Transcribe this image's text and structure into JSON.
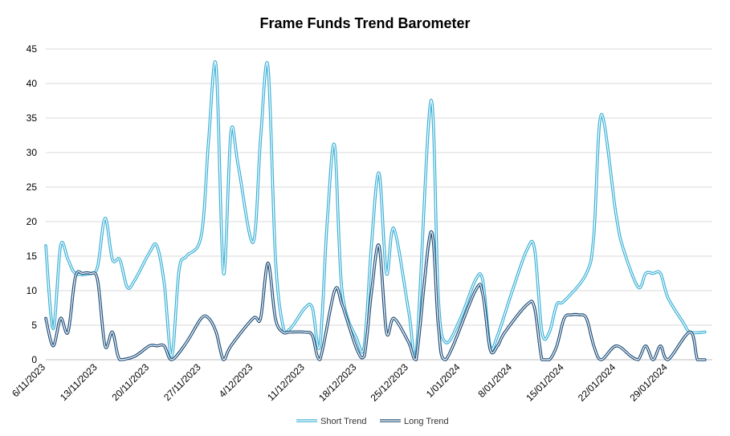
{
  "chart_data": {
    "type": "line",
    "title": "Frame Funds Trend Barometer",
    "xlabel": "",
    "ylabel": "",
    "ylim": [
      0,
      45
    ],
    "y_ticks": [
      0,
      5,
      10,
      15,
      20,
      25,
      30,
      35,
      40,
      45
    ],
    "grid": true,
    "legend_position": "bottom",
    "x_range": [
      "2023-11-06",
      "2024-02-04"
    ],
    "x_tick_labels": [
      "6/11/2023",
      "13/11/2023",
      "20/11/2023",
      "27/11/2023",
      "4/12/2023",
      "11/12/2023",
      "18/12/2023",
      "25/12/2023",
      "1/01/2024",
      "8/01/2024",
      "15/01/2024",
      "22/01/2024",
      "29/01/2024"
    ],
    "series": [
      {
        "name": "Short Trend",
        "color": "#3bb0d6",
        "points": [
          [
            "2023-11-06",
            16.5
          ],
          [
            "2023-11-07",
            4.5
          ],
          [
            "2023-11-08",
            16.5
          ],
          [
            "2023-11-09",
            14.5
          ],
          [
            "2023-11-10",
            12.5
          ],
          [
            "2023-11-12",
            12.5
          ],
          [
            "2023-11-13",
            13.5
          ],
          [
            "2023-11-14",
            20.5
          ],
          [
            "2023-11-15",
            14.5
          ],
          [
            "2023-11-16",
            14.5
          ],
          [
            "2023-11-17",
            10.5
          ],
          [
            "2023-11-18",
            11.5
          ],
          [
            "2023-11-20",
            15.5
          ],
          [
            "2023-11-21",
            16.5
          ],
          [
            "2023-11-22",
            11.0
          ],
          [
            "2023-11-23",
            0.5
          ],
          [
            "2023-11-24",
            13.0
          ],
          [
            "2023-11-25",
            15.0
          ],
          [
            "2023-11-27",
            18.0
          ],
          [
            "2023-11-28",
            32.0
          ],
          [
            "2023-11-29",
            42.5
          ],
          [
            "2023-11-30",
            12.5
          ],
          [
            "2023-12-01",
            33.0
          ],
          [
            "2023-12-02",
            28.0
          ],
          [
            "2023-12-04",
            17.0
          ],
          [
            "2023-12-05",
            32.0
          ],
          [
            "2023-12-06",
            42.5
          ],
          [
            "2023-12-07",
            15.0
          ],
          [
            "2023-12-08",
            5.0
          ],
          [
            "2023-12-09",
            4.5
          ],
          [
            "2023-12-11",
            7.5
          ],
          [
            "2023-12-12",
            7.5
          ],
          [
            "2023-12-13",
            2.0
          ],
          [
            "2023-12-14",
            20.0
          ],
          [
            "2023-12-15",
            31.0
          ],
          [
            "2023-12-16",
            10.0
          ],
          [
            "2023-12-18",
            3.0
          ],
          [
            "2023-12-19",
            2.0
          ],
          [
            "2023-12-20",
            17.0
          ],
          [
            "2023-12-21",
            27.0
          ],
          [
            "2023-12-22",
            12.5
          ],
          [
            "2023-12-23",
            19.0
          ],
          [
            "2023-12-25",
            7.0
          ],
          [
            "2023-12-26",
            0.5
          ],
          [
            "2023-12-28",
            37.5
          ],
          [
            "2023-12-29",
            9.0
          ],
          [
            "2023-12-30",
            2.5
          ],
          [
            "2024-01-01",
            6.0
          ],
          [
            "2024-01-03",
            11.5
          ],
          [
            "2024-01-04",
            11.5
          ],
          [
            "2024-01-05",
            2.0
          ],
          [
            "2024-01-06",
            3.5
          ],
          [
            "2024-01-08",
            10.0
          ],
          [
            "2024-01-10",
            16.0
          ],
          [
            "2024-01-11",
            16.0
          ],
          [
            "2024-01-12",
            4.0
          ],
          [
            "2024-01-13",
            4.0
          ],
          [
            "2024-01-14",
            8.0
          ],
          [
            "2024-01-15",
            8.5
          ],
          [
            "2024-01-18",
            12.5
          ],
          [
            "2024-01-19",
            18.0
          ],
          [
            "2024-01-20",
            35.5
          ],
          [
            "2024-01-22",
            21.0
          ],
          [
            "2024-01-23",
            16.0
          ],
          [
            "2024-01-25",
            10.5
          ],
          [
            "2024-01-26",
            12.5
          ],
          [
            "2024-01-27",
            12.5
          ],
          [
            "2024-01-28",
            12.5
          ],
          [
            "2024-01-29",
            9.0
          ],
          [
            "2024-01-31",
            5.5
          ],
          [
            "2024-02-01",
            4.0
          ],
          [
            "2024-02-03",
            4.0
          ]
        ]
      },
      {
        "name": "Long Trend",
        "color": "#1f4e79",
        "points": [
          [
            "2023-11-06",
            6.0
          ],
          [
            "2023-11-07",
            2.0
          ],
          [
            "2023-11-08",
            6.0
          ],
          [
            "2023-11-09",
            4.0
          ],
          [
            "2023-11-10",
            12.0
          ],
          [
            "2023-11-11",
            12.5
          ],
          [
            "2023-11-12",
            12.5
          ],
          [
            "2023-11-13",
            11.5
          ],
          [
            "2023-11-14",
            2.0
          ],
          [
            "2023-11-15",
            4.0
          ],
          [
            "2023-11-16",
            0.0
          ],
          [
            "2023-11-18",
            0.5
          ],
          [
            "2023-11-20",
            2.0
          ],
          [
            "2023-11-21",
            2.0
          ],
          [
            "2023-11-22",
            2.0
          ],
          [
            "2023-11-23",
            0.0
          ],
          [
            "2023-11-25",
            2.5
          ],
          [
            "2023-11-27",
            6.0
          ],
          [
            "2023-11-28",
            6.0
          ],
          [
            "2023-11-29",
            4.0
          ],
          [
            "2023-11-30",
            0.0
          ],
          [
            "2023-12-01",
            2.0
          ],
          [
            "2023-12-04",
            6.0
          ],
          [
            "2023-12-05",
            6.0
          ],
          [
            "2023-12-06",
            14.0
          ],
          [
            "2023-12-07",
            6.0
          ],
          [
            "2023-12-08",
            4.0
          ],
          [
            "2023-12-09",
            4.0
          ],
          [
            "2023-12-11",
            4.0
          ],
          [
            "2023-12-12",
            3.5
          ],
          [
            "2023-12-13",
            0.0
          ],
          [
            "2023-12-15",
            10.0
          ],
          [
            "2023-12-16",
            8.0
          ],
          [
            "2023-12-18",
            1.5
          ],
          [
            "2023-12-19",
            0.5
          ],
          [
            "2023-12-20",
            10.0
          ],
          [
            "2023-12-21",
            16.5
          ],
          [
            "2023-12-22",
            4.0
          ],
          [
            "2023-12-23",
            6.0
          ],
          [
            "2023-12-25",
            2.5
          ],
          [
            "2023-12-26",
            0.0
          ],
          [
            "2023-12-28",
            18.5
          ],
          [
            "2023-12-29",
            5.0
          ],
          [
            "2023-12-30",
            0.0
          ],
          [
            "2024-01-03",
            10.0
          ],
          [
            "2024-01-04",
            9.5
          ],
          [
            "2024-01-05",
            1.5
          ],
          [
            "2024-01-06",
            2.0
          ],
          [
            "2024-01-07",
            4.0
          ],
          [
            "2024-01-10",
            8.0
          ],
          [
            "2024-01-11",
            7.5
          ],
          [
            "2024-01-12",
            0.0
          ],
          [
            "2024-01-13",
            0.0
          ],
          [
            "2024-01-14",
            2.0
          ],
          [
            "2024-01-15",
            6.0
          ],
          [
            "2024-01-16",
            6.5
          ],
          [
            "2024-01-17",
            6.5
          ],
          [
            "2024-01-18",
            6.0
          ],
          [
            "2024-01-19",
            2.0
          ],
          [
            "2024-01-20",
            0.0
          ],
          [
            "2024-01-22",
            2.0
          ],
          [
            "2024-01-24",
            0.5
          ],
          [
            "2024-01-25",
            0.0
          ],
          [
            "2024-01-26",
            2.0
          ],
          [
            "2024-01-27",
            0.0
          ],
          [
            "2024-01-28",
            2.0
          ],
          [
            "2024-01-29",
            0.0
          ],
          [
            "2024-02-01",
            4.0
          ],
          [
            "2024-02-02",
            0.0
          ],
          [
            "2024-02-03",
            0.0
          ]
        ]
      }
    ]
  }
}
